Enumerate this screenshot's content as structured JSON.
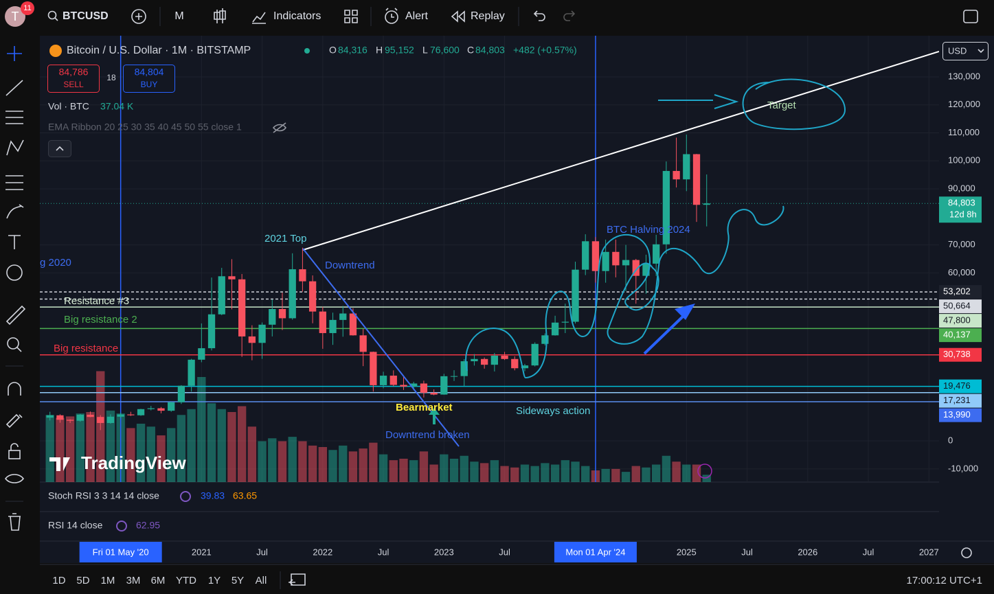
{
  "toolbar": {
    "avatar": "T",
    "notifications": "11",
    "symbol": "BTCUSD",
    "interval": "M",
    "indicators": "Indicators",
    "alert": "Alert",
    "replay": "Replay"
  },
  "legend": {
    "title": "Bitcoin / U.S. Dollar · 1M · BITSTAMP",
    "open_label": "O",
    "open": "84,316",
    "high_label": "H",
    "high": "95,152",
    "low_label": "L",
    "low": "76,600",
    "close_label": "C",
    "close": "84,803",
    "change": "+482 (+0.57%)",
    "sell_price": "84,786",
    "sell": "SELL",
    "spread": "18",
    "buy_price": "84,804",
    "buy": "BUY",
    "volume_title": "Vol · BTC",
    "volume_value": "37.04 K",
    "ema": "EMA Ribbon 20 25 30 35 40 45 50 55 close 1"
  },
  "chart_data": {
    "type": "candlestick",
    "currency": "USD",
    "watermark": "TradingView",
    "up_color": "#22ab94",
    "down_color": "#f7525f",
    "xlim": [
      "2019-09",
      "2027-02"
    ],
    "ylim": [
      -14700,
      144700
    ],
    "yticks": [
      {
        "value": 130000,
        "label": "130,000"
      },
      {
        "value": 120000,
        "label": "120,000"
      },
      {
        "value": 110000,
        "label": "110,000"
      },
      {
        "value": 100000,
        "label": "100,000"
      },
      {
        "value": 90000,
        "label": "90,000"
      },
      {
        "value": 70000,
        "label": "70,000"
      },
      {
        "value": 60000,
        "label": "60,000"
      },
      0,
      {
        "value": -10000,
        "label": "-10,000"
      }
    ],
    "xticks": [
      {
        "value": "2021-01",
        "label": "2021"
      },
      {
        "value": "2021-07",
        "label": "Jul"
      },
      {
        "value": "2022-01",
        "label": "2022"
      },
      {
        "value": "2022-07",
        "label": "Jul"
      },
      {
        "value": "2023-01",
        "label": "2023"
      },
      {
        "value": "2023-07",
        "label": "Jul"
      },
      {
        "value": "2025-01",
        "label": "2025"
      },
      {
        "value": "2025-07",
        "label": "Jul"
      },
      {
        "value": "2026-01",
        "label": "2026"
      },
      {
        "value": "2026-07",
        "label": "Jul"
      },
      {
        "value": "2027-01",
        "label": "2027"
      }
    ],
    "markers": [
      {
        "x": "2020-05",
        "label": "Fri 01 May '20"
      },
      {
        "x": "2024-04",
        "label": "Mon 01 Apr '24"
      }
    ],
    "x": [
      "2019-10",
      "2019-11",
      "2019-12",
      "2020-01",
      "2020-02",
      "2020-03",
      "2020-04",
      "2020-05",
      "2020-06",
      "2020-07",
      "2020-08",
      "2020-09",
      "2020-10",
      "2020-11",
      "2020-12",
      "2021-01",
      "2021-02",
      "2021-03",
      "2021-04",
      "2021-05",
      "2021-06",
      "2021-07",
      "2021-08",
      "2021-09",
      "2021-10",
      "2021-11",
      "2021-12",
      "2022-01",
      "2022-02",
      "2022-03",
      "2022-04",
      "2022-05",
      "2022-06",
      "2022-07",
      "2022-08",
      "2022-09",
      "2022-10",
      "2022-11",
      "2022-12",
      "2023-01",
      "2023-02",
      "2023-03",
      "2023-04",
      "2023-05",
      "2023-06",
      "2023-07",
      "2023-08",
      "2023-09",
      "2023-10",
      "2023-11",
      "2023-12",
      "2024-01",
      "2024-02",
      "2024-03",
      "2024-04",
      "2024-05",
      "2024-06",
      "2024-07",
      "2024-08",
      "2024-09",
      "2024-10",
      "2024-11",
      "2024-12",
      "2025-01",
      "2025-02",
      "2025-03"
    ],
    "candles": [
      [
        8300,
        10400,
        7300,
        9150
      ],
      [
        9150,
        9500,
        6500,
        7550
      ],
      [
        7550,
        7750,
        6400,
        7200
      ],
      [
        7200,
        9600,
        6850,
        9350
      ],
      [
        9350,
        10500,
        8450,
        8550
      ],
      [
        8550,
        9200,
        3850,
        6400
      ],
      [
        6400,
        9500,
        6150,
        8650
      ],
      [
        8650,
        10100,
        8100,
        9450
      ],
      [
        9450,
        10400,
        8900,
        9150
      ],
      [
        9150,
        11450,
        8950,
        11350
      ],
      [
        11350,
        12500,
        10900,
        11650
      ],
      [
        11650,
        12100,
        9850,
        10780
      ],
      [
        10780,
        14000,
        10400,
        13800
      ],
      [
        13800,
        19900,
        13200,
        19700
      ],
      [
        19700,
        29300,
        17600,
        29000
      ],
      [
        29000,
        41950,
        28100,
        33100
      ],
      [
        33100,
        58350,
        32300,
        45200
      ],
      [
        45200,
        61800,
        44900,
        58800
      ],
      [
        58800,
        64900,
        47000,
        57700
      ],
      [
        57700,
        59600,
        30000,
        37300
      ],
      [
        37300,
        41300,
        28800,
        35000
      ],
      [
        35000,
        42300,
        29300,
        41500
      ],
      [
        41500,
        50500,
        37300,
        47100
      ],
      [
        47100,
        52900,
        39600,
        43800
      ],
      [
        43800,
        67000,
        43300,
        61300
      ],
      [
        61300,
        69000,
        53300,
        57000
      ],
      [
        57000,
        59100,
        42000,
        46200
      ],
      [
        46200,
        47900,
        32900,
        38500
      ],
      [
        38500,
        45800,
        34300,
        43200
      ],
      [
        43200,
        48200,
        37200,
        45500
      ],
      [
        45500,
        47400,
        37600,
        37700
      ],
      [
        37700,
        40000,
        26700,
        31800
      ],
      [
        31800,
        31900,
        17600,
        19900
      ],
      [
        19900,
        24700,
        18800,
        23300
      ],
      [
        23300,
        25200,
        19500,
        20000
      ],
      [
        20000,
        22800,
        18200,
        19400
      ],
      [
        19400,
        21100,
        18100,
        20500
      ],
      [
        20500,
        21500,
        15500,
        17200
      ],
      [
        17200,
        18400,
        16300,
        16550
      ],
      [
        16550,
        23950,
        16500,
        23100
      ],
      [
        23100,
        25250,
        21400,
        23150
      ],
      [
        23150,
        29200,
        19550,
        28450
      ],
      [
        28450,
        31000,
        26900,
        29250
      ],
      [
        29250,
        29800,
        25800,
        27200
      ],
      [
        27200,
        31400,
        24800,
        30450
      ],
      [
        30450,
        31800,
        28900,
        29250
      ],
      [
        29250,
        30200,
        25200,
        25950
      ],
      [
        25950,
        27500,
        24900,
        26950
      ],
      [
        26950,
        35200,
        26600,
        34650
      ],
      [
        34650,
        38400,
        34100,
        37700
      ],
      [
        37700,
        44700,
        37600,
        42250
      ],
      [
        42250,
        49000,
        38500,
        42550
      ],
      [
        42550,
        64000,
        41900,
        61150
      ],
      [
        61150,
        73800,
        59200,
        71300
      ],
      [
        71300,
        72800,
        56500,
        60650
      ],
      [
        60650,
        71900,
        56500,
        67500
      ],
      [
        67500,
        71900,
        58400,
        62700
      ],
      [
        62700,
        70000,
        53500,
        64600
      ],
      [
        64600,
        65000,
        49000,
        58950
      ],
      [
        58950,
        66500,
        52550,
        63300
      ],
      [
        63300,
        73600,
        58900,
        70200
      ],
      [
        70200,
        99800,
        66800,
        96400
      ],
      [
        96400,
        108300,
        90500,
        93400
      ],
      [
        93400,
        109400,
        89200,
        102400
      ],
      [
        102400,
        102500,
        78200,
        84300
      ],
      [
        84316,
        95152,
        76600,
        84803
      ]
    ],
    "volume": [
      230,
      220,
      225,
      235,
      240,
      380,
      245,
      235,
      185,
      200,
      190,
      160,
      185,
      230,
      250,
      360,
      270,
      250,
      240,
      260,
      190,
      140,
      150,
      140,
      155,
      140,
      125,
      120,
      110,
      125,
      105,
      115,
      135,
      95,
      75,
      80,
      75,
      105,
      60,
      95,
      80,
      90,
      70,
      65,
      75,
      55,
      50,
      60,
      55,
      65,
      60,
      75,
      70,
      55,
      40,
      45,
      45,
      35,
      55,
      50,
      60,
      90,
      70,
      60,
      60,
      25
    ],
    "volume_lim": [
      0,
      400
    ],
    "levels": [
      {
        "value": 53202,
        "label": "53,202",
        "color": "#d1d4dc",
        "style": "dashed",
        "label_color": "#1e222d",
        "text_color": "#ffffff"
      },
      {
        "value": 50664,
        "label": "50,664",
        "color": "#d1d4dc",
        "style": "dashed",
        "label_color": "#d9dce3",
        "text_color": "#131722"
      },
      {
        "value": 47800,
        "label": "47,800",
        "color": "#c8e6c9",
        "style": "solid",
        "label_color": "#c8e6c9",
        "text_color": "#131722"
      },
      {
        "value": 40137,
        "label": "40,137",
        "color": "#4caf50",
        "style": "solid",
        "label_color": "#4caf50",
        "text_color": "#ffffff"
      },
      {
        "value": 30738,
        "label": "30,738",
        "color": "#f23645",
        "style": "solid",
        "label_color": "#f23645",
        "text_color": "#ffffff"
      },
      {
        "value": 19476,
        "label": "19,476",
        "color": "#00bcd4",
        "style": "solid",
        "label_color": "#00bcd4",
        "text_color": "#131722"
      },
      {
        "value": 17231,
        "label": "17,231",
        "color": "#90caf9",
        "style": "solid",
        "label_color": "#90caf9",
        "text_color": "#131722"
      },
      {
        "value": 13990,
        "label": "13,990",
        "color": "#5b8def",
        "style": "solid",
        "label_color": "#3d6cf0",
        "text_color": "#ffffff"
      }
    ],
    "last_price": {
      "value": 84803,
      "label": "84,803",
      "countdown": "12d 8h"
    },
    "annotations": [
      "g 2020",
      "2021 Top",
      "Downtrend",
      "Resistance #3",
      "Big resistance 2",
      "Big resistance",
      "BTC Halving 2024",
      "Target",
      "Bearmarket",
      "Downtrend broken",
      "Sideways action"
    ]
  },
  "indicators": {
    "stoch_title": "Stoch RSI 3 3 14 14 close",
    "stoch_k": "39.83",
    "stoch_d": "63.65",
    "rsi_title": "RSI 14 close",
    "rsi_value": "62.95"
  },
  "bottom_bar": {
    "ranges": [
      "1D",
      "5D",
      "1M",
      "3M",
      "6M",
      "YTD",
      "1Y",
      "5Y",
      "All"
    ],
    "clock": "17:00:12 UTC+1"
  }
}
